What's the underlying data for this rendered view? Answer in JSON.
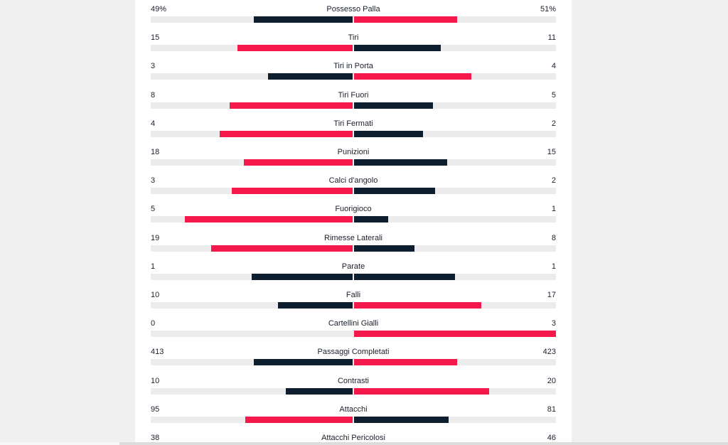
{
  "colors": {
    "leading": "#f5184a",
    "trailing": "#0f1e2e"
  },
  "stats": [
    {
      "label": "Possesso Palla",
      "home": "49%",
      "away": "51%",
      "home_share": 0.49,
      "away_share": 0.51,
      "leader": "away"
    },
    {
      "label": "Tiri",
      "home": "15",
      "away": "11",
      "home_share": 0.57,
      "away_share": 0.43,
      "leader": "home"
    },
    {
      "label": "Tiri in Porta",
      "home": "3",
      "away": "4",
      "home_share": 0.42,
      "away_share": 0.58,
      "leader": "away"
    },
    {
      "label": "Tiri Fuori",
      "home": "8",
      "away": "5",
      "home_share": 0.61,
      "away_share": 0.39,
      "leader": "home"
    },
    {
      "label": "Tiri Fermati",
      "home": "4",
      "away": "2",
      "home_share": 0.66,
      "away_share": 0.34,
      "leader": "home"
    },
    {
      "label": "Punizioni",
      "home": "18",
      "away": "15",
      "home_share": 0.54,
      "away_share": 0.46,
      "leader": "home"
    },
    {
      "label": "Calci d'angolo",
      "home": "3",
      "away": "2",
      "home_share": 0.6,
      "away_share": 0.4,
      "leader": "home"
    },
    {
      "label": "Fuorigioco",
      "home": "5",
      "away": "1",
      "home_share": 0.83,
      "away_share": 0.17,
      "leader": "home"
    },
    {
      "label": "Rimesse Laterali",
      "home": "19",
      "away": "8",
      "home_share": 0.7,
      "away_share": 0.3,
      "leader": "home"
    },
    {
      "label": "Parate",
      "home": "1",
      "away": "1",
      "home_share": 0.5,
      "away_share": 0.5,
      "leader": "none"
    },
    {
      "label": "Falli",
      "home": "10",
      "away": "17",
      "home_share": 0.37,
      "away_share": 0.63,
      "leader": "away"
    },
    {
      "label": "Cartellini Gialli",
      "home": "0",
      "away": "3",
      "home_share": 0.0,
      "away_share": 1.0,
      "leader": "away"
    },
    {
      "label": "Passaggi Completati",
      "home": "413",
      "away": "423",
      "home_share": 0.49,
      "away_share": 0.51,
      "leader": "away"
    },
    {
      "label": "Contrasti",
      "home": "10",
      "away": "20",
      "home_share": 0.33,
      "away_share": 0.67,
      "leader": "away"
    },
    {
      "label": "Attacchi",
      "home": "95",
      "away": "81",
      "home_share": 0.53,
      "away_share": 0.47,
      "leader": "home"
    },
    {
      "label": "Attacchi Pericolosi",
      "home": "38",
      "away": "46",
      "home_share": 0.45,
      "away_share": 0.55,
      "leader": "away"
    }
  ]
}
